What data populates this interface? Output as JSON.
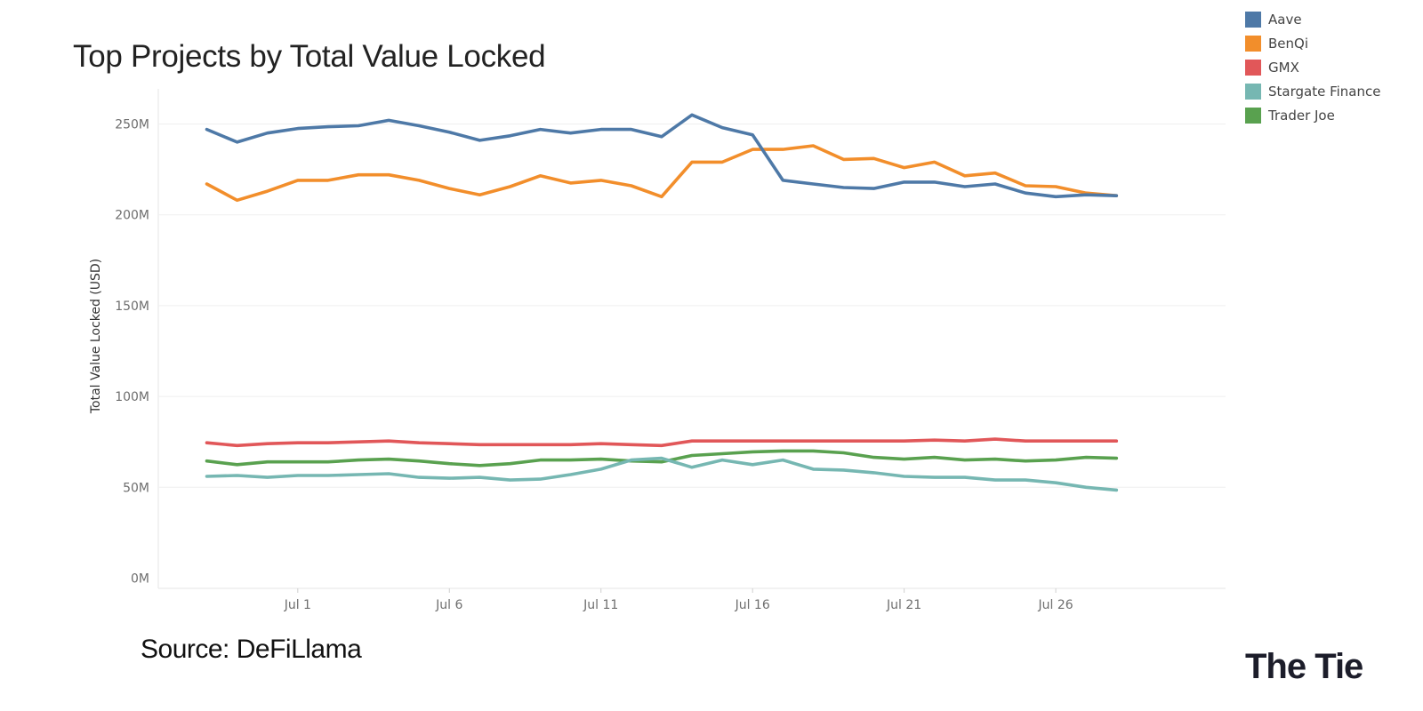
{
  "chart_data": {
    "type": "line",
    "title": "Top Projects by Total Value Locked",
    "xlabel": "",
    "ylabel": "Total Value Locked (USD)",
    "ylim": [
      0,
      270
    ],
    "yticks": [
      0,
      50,
      100,
      150,
      200,
      250
    ],
    "ytick_labels": [
      "0M",
      "50M",
      "100M",
      "150M",
      "200M",
      "250M"
    ],
    "x": [
      -2,
      -1,
      0,
      1,
      2,
      3,
      4,
      5,
      6,
      7,
      8,
      9,
      10,
      11,
      12,
      13,
      14,
      15,
      16,
      17,
      18,
      19,
      20,
      21,
      22,
      23,
      24,
      25,
      26,
      27,
      28
    ],
    "x_range": [
      -3.6,
      31.6
    ],
    "xticks": [
      1,
      6,
      11,
      16,
      21,
      26
    ],
    "xtick_labels": [
      "Jul 1",
      "Jul 6",
      "Jul 11",
      "Jul 16",
      "Jul 21",
      "Jul 26"
    ],
    "grid": true,
    "legend_position": "top-right",
    "series": [
      {
        "name": "Aave",
        "color": "#4e79a7",
        "values": [
          247,
          240,
          245,
          247.5,
          248.5,
          249,
          252,
          249,
          245.5,
          241,
          243.5,
          247,
          245,
          247,
          247,
          243,
          255,
          248,
          244,
          219,
          217,
          215,
          214.5,
          218,
          218,
          215.5,
          217,
          212,
          210,
          211,
          210.5
        ]
      },
      {
        "name": "BenQi",
        "color": "#f28e2b",
        "values": [
          217,
          208,
          213,
          219,
          219,
          222,
          222,
          219,
          214.5,
          211,
          215.5,
          221.5,
          217.5,
          219,
          216,
          210,
          229,
          229,
          236,
          236,
          238,
          230.5,
          231,
          226,
          229,
          221.5,
          223,
          216,
          215.5,
          212,
          210.5
        ]
      },
      {
        "name": "GMX",
        "color": "#e15759",
        "values": [
          74.5,
          73,
          74,
          74.5,
          74.5,
          75,
          75.5,
          74.5,
          74,
          73.5,
          73.5,
          73.5,
          73.5,
          74,
          73.5,
          73,
          75.5,
          75.5,
          75.5,
          75.5,
          75.5,
          75.5,
          75.5,
          75.5,
          76,
          75.5,
          76.5,
          75.5,
          75.5,
          75.5,
          75.5
        ]
      },
      {
        "name": "Stargate Finance",
        "color": "#76b7b2",
        "values": [
          56,
          56.5,
          55.5,
          56.5,
          56.5,
          57,
          57.5,
          55.5,
          55,
          55.5,
          54,
          54.5,
          57,
          60,
          65,
          66,
          61,
          65,
          62.5,
          65,
          60,
          59.5,
          58,
          56,
          55.5,
          55.5,
          54,
          54,
          52.5,
          50,
          48.5
        ]
      },
      {
        "name": "Trader Joe",
        "color": "#59a14f",
        "values": [
          64.5,
          62.5,
          64,
          64,
          64,
          65,
          65.5,
          64.5,
          63,
          62,
          63,
          65,
          65,
          65.5,
          64.5,
          64,
          67.5,
          68.5,
          69.5,
          70,
          70,
          69,
          66.5,
          65.5,
          66.5,
          65,
          65.5,
          64.5,
          65,
          66.5,
          66
        ]
      }
    ]
  },
  "source": "Source: DeFiLlama",
  "brand": "The Tie"
}
